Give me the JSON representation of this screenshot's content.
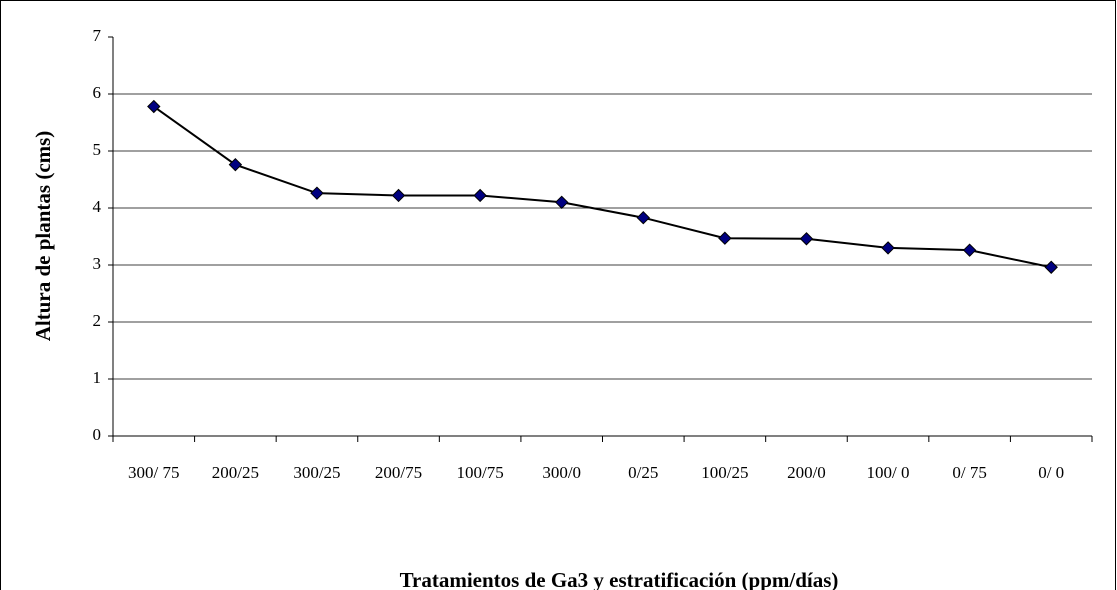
{
  "chart_data": {
    "type": "line",
    "x_label": "Tratamientos de Ga3 y estratificación (ppm/días)",
    "y_label": "Altura de plantas (cms)",
    "categories": [
      "300/ 75",
      "200/25",
      "300/25",
      "200/75",
      "100/75",
      "300/0",
      "0/25",
      "100/25",
      "200/0",
      "100/ 0",
      "0/ 75",
      "0/ 0"
    ],
    "values": [
      5.78,
      4.76,
      4.26,
      4.22,
      4.22,
      4.1,
      3.83,
      3.47,
      3.46,
      3.3,
      3.26,
      2.96
    ],
    "color": "#000000",
    "marker_color": "#000080",
    "ylim": [
      0,
      7
    ],
    "yticks": [
      0,
      1,
      2,
      3,
      4,
      5,
      6,
      7
    ],
    "grid": true
  }
}
